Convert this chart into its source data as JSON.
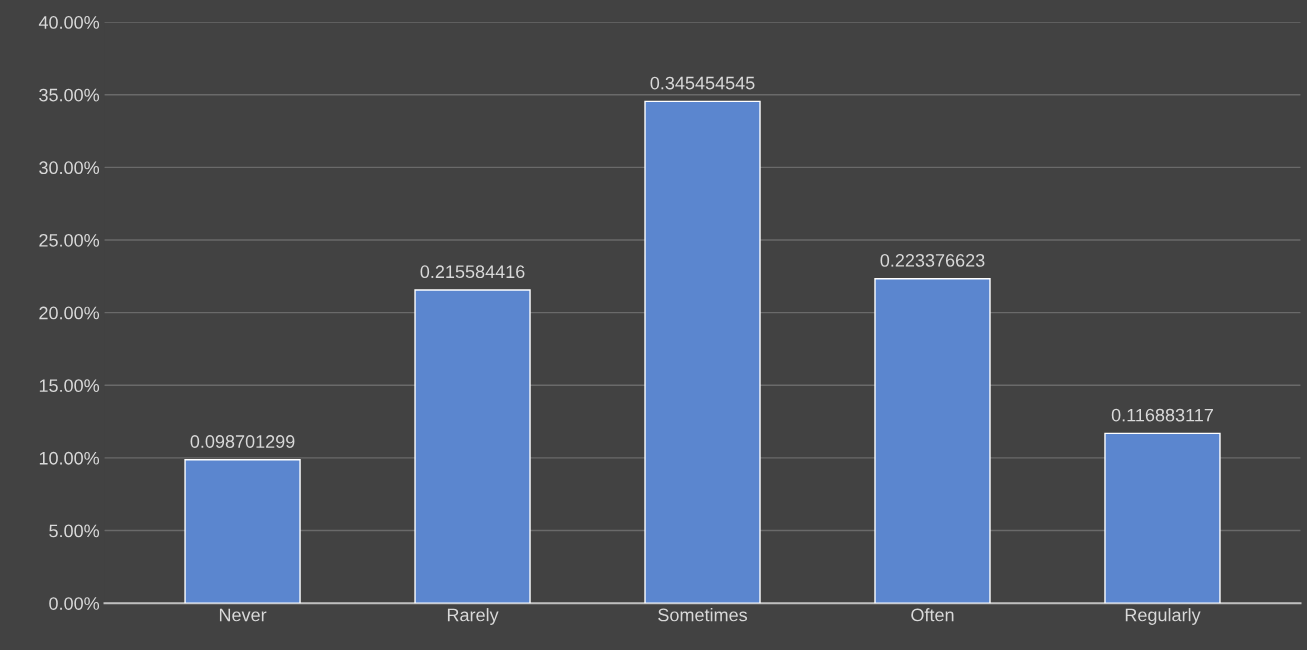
{
  "chart_data": {
    "type": "bar",
    "categories": [
      "Never",
      "Rarely",
      "Sometimes",
      "Often",
      "Regularly"
    ],
    "values": [
      0.098701299,
      0.215584416,
      0.345454545,
      0.223376623,
      0.116883117
    ],
    "color": "#5b86cf",
    "ylim": [
      0,
      0.4
    ],
    "yticks": [
      {
        "value": 0,
        "label": "0.00%"
      },
      {
        "value": 0.05,
        "label": "5.00%"
      },
      {
        "value": 0.1,
        "label": "10.00%"
      },
      {
        "value": 0.15,
        "label": "15.00%"
      },
      {
        "value": 0.2,
        "label": "20.00%"
      },
      {
        "value": 0.25,
        "label": "25.00%"
      },
      {
        "value": 0.3,
        "label": "30.00%"
      },
      {
        "value": 0.35,
        "label": "35.00%"
      },
      {
        "value": 0.4,
        "label": "40.00%"
      }
    ],
    "grid": "y",
    "data_labels": true
  }
}
